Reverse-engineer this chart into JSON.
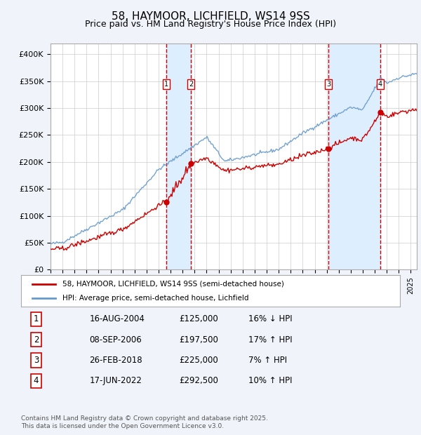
{
  "title": "58, HAYMOOR, LICHFIELD, WS14 9SS",
  "subtitle": "Price paid vs. HM Land Registry's House Price Index (HPI)",
  "legend_property": "58, HAYMOOR, LICHFIELD, WS14 9SS (semi-detached house)",
  "legend_hpi": "HPI: Average price, semi-detached house, Lichfield",
  "footer": "Contains HM Land Registry data © Crown copyright and database right 2025.\nThis data is licensed under the Open Government Licence v3.0.",
  "transactions": [
    {
      "label": "1",
      "date": "16-AUG-2004",
      "price": 125000,
      "hpi_rel": "16% ↓ HPI"
    },
    {
      "label": "2",
      "date": "08-SEP-2006",
      "price": 197500,
      "hpi_rel": "17% ↑ HPI"
    },
    {
      "label": "3",
      "date": "26-FEB-2018",
      "price": 225000,
      "hpi_rel": "7% ↑ HPI"
    },
    {
      "label": "4",
      "date": "17-JUN-2022",
      "price": 292500,
      "hpi_rel": "10% ↑ HPI"
    }
  ],
  "transaction_years": [
    2004.62,
    2006.69,
    2018.16,
    2022.46
  ],
  "transaction_prices": [
    125000,
    197500,
    225000,
    292500
  ],
  "vline_color": "#cc0000",
  "vline_shade_color": "#ddeeff",
  "property_line_color": "#cc0000",
  "hpi_line_color": "#6699cc",
  "ylim": [
    0,
    420000
  ],
  "yticks": [
    0,
    50000,
    100000,
    150000,
    200000,
    250000,
    300000,
    350000,
    400000
  ],
  "ytick_labels": [
    "£0",
    "£50K",
    "£100K",
    "£150K",
    "£200K",
    "£250K",
    "£300K",
    "£350K",
    "£400K"
  ],
  "xlim_start": 1995.0,
  "xlim_end": 2025.5,
  "bg_color": "#f0f4fa",
  "plot_bg_color": "#ffffff",
  "table_rows": [
    [
      "1",
      "16-AUG-2004",
      "£125,000",
      "16% ↓ HPI"
    ],
    [
      "2",
      "08-SEP-2006",
      "£197,500",
      "17% ↑ HPI"
    ],
    [
      "3",
      "26-FEB-2018",
      "£225,000",
      "7% ↑ HPI"
    ],
    [
      "4",
      "17-JUN-2022",
      "£292,500",
      "10% ↑ HPI"
    ]
  ]
}
